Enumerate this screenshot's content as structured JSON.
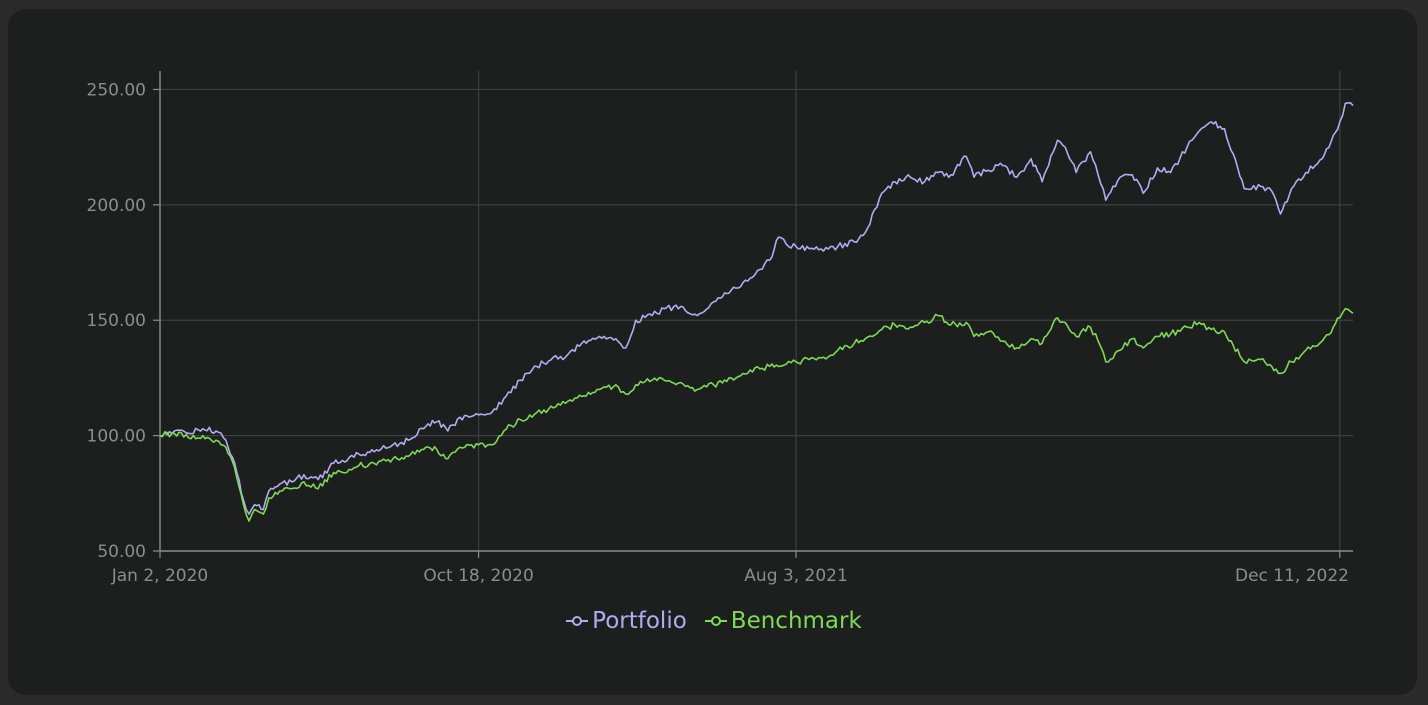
{
  "chart_data": {
    "type": "line",
    "x_type": "date",
    "x_range": [
      "2020-01-02",
      "2022-12-23"
    ],
    "x_ticks": [
      {
        "label": "Jan 2, 2020",
        "date": "2020-01-02"
      },
      {
        "label": "Oct 18, 2020",
        "date": "2020-10-18"
      },
      {
        "label": "Aug 3, 2021",
        "date": "2021-08-03"
      },
      {
        "label": "Dec 11, 2022",
        "date": "2022-12-11"
      }
    ],
    "y_ticks": [
      {
        "label": "50.00",
        "value": 50
      },
      {
        "label": "100.00",
        "value": 100
      },
      {
        "label": "150.00",
        "value": 150
      },
      {
        "label": "200.00",
        "value": 200
      },
      {
        "label": "250.00",
        "value": 250
      }
    ],
    "ylim": [
      50,
      258
    ],
    "grid": true,
    "legend_position": "bottom-center",
    "background_color": "#1d1e1e",
    "grid_color": "#3d3f40",
    "axis_color": "#8b8d8e",
    "series": [
      {
        "name": "Portfolio",
        "color": "#b5aaf1",
        "points": [
          [
            "2020-01-02",
            100
          ],
          [
            "2020-01-15",
            102
          ],
          [
            "2020-01-28",
            101
          ],
          [
            "2020-02-10",
            103
          ],
          [
            "2020-02-22",
            102
          ],
          [
            "2020-03-02",
            98
          ],
          [
            "2020-03-10",
            88
          ],
          [
            "2020-03-18",
            72
          ],
          [
            "2020-03-23",
            66
          ],
          [
            "2020-03-28",
            70
          ],
          [
            "2020-04-05",
            68
          ],
          [
            "2020-04-10",
            76
          ],
          [
            "2020-04-20",
            79
          ],
          [
            "2020-05-01",
            80
          ],
          [
            "2020-05-12",
            83
          ],
          [
            "2020-05-25",
            81
          ],
          [
            "2020-06-08",
            88
          ],
          [
            "2020-06-20",
            89
          ],
          [
            "2020-07-01",
            92
          ],
          [
            "2020-07-15",
            93
          ],
          [
            "2020-08-01",
            96
          ],
          [
            "2020-08-15",
            98
          ],
          [
            "2020-08-31",
            104
          ],
          [
            "2020-09-10",
            106
          ],
          [
            "2020-09-20",
            102
          ],
          [
            "2020-10-01",
            108
          ],
          [
            "2020-10-18",
            109
          ],
          [
            "2020-10-30",
            110
          ],
          [
            "2020-11-10",
            116
          ],
          [
            "2020-11-25",
            124
          ],
          [
            "2020-12-10",
            130
          ],
          [
            "2020-12-25",
            134
          ],
          [
            "2021-01-05",
            134
          ],
          [
            "2021-01-20",
            140
          ],
          [
            "2021-02-05",
            143
          ],
          [
            "2021-02-20",
            142
          ],
          [
            "2021-03-01",
            138
          ],
          [
            "2021-03-10",
            150
          ],
          [
            "2021-03-25",
            152
          ],
          [
            "2021-04-05",
            155
          ],
          [
            "2021-04-20",
            156
          ],
          [
            "2021-05-05",
            152
          ],
          [
            "2021-05-20",
            158
          ],
          [
            "2021-06-05",
            163
          ],
          [
            "2021-06-20",
            167
          ],
          [
            "2021-07-01",
            172
          ],
          [
            "2021-07-10",
            176
          ],
          [
            "2021-07-18",
            186
          ],
          [
            "2021-07-25",
            183
          ],
          [
            "2021-08-03",
            182
          ],
          [
            "2021-08-15",
            181
          ],
          [
            "2021-08-28",
            180
          ],
          [
            "2021-09-10",
            182
          ],
          [
            "2021-09-25",
            184
          ],
          [
            "2021-10-05",
            188
          ],
          [
            "2021-10-20",
            205
          ],
          [
            "2021-11-01",
            210
          ],
          [
            "2021-11-15",
            212
          ],
          [
            "2021-11-28",
            210
          ],
          [
            "2021-12-10",
            214
          ],
          [
            "2021-12-22",
            213
          ],
          [
            "2022-01-05",
            221
          ],
          [
            "2022-01-12",
            212
          ],
          [
            "2022-01-25",
            215
          ],
          [
            "2022-02-05",
            218
          ],
          [
            "2022-02-20",
            212
          ],
          [
            "2022-03-05",
            220
          ],
          [
            "2022-03-15",
            210
          ],
          [
            "2022-03-29",
            228
          ],
          [
            "2022-04-05",
            225
          ],
          [
            "2022-04-15",
            214
          ],
          [
            "2022-04-28",
            223
          ],
          [
            "2022-05-05",
            213
          ],
          [
            "2022-05-12",
            202
          ],
          [
            "2022-05-25",
            212
          ],
          [
            "2022-06-05",
            213
          ],
          [
            "2022-06-15",
            205
          ],
          [
            "2022-06-28",
            216
          ],
          [
            "2022-07-10",
            214
          ],
          [
            "2022-07-25",
            225
          ],
          [
            "2022-08-05",
            232
          ],
          [
            "2022-08-16",
            236
          ],
          [
            "2022-08-28",
            233
          ],
          [
            "2022-09-05",
            222
          ],
          [
            "2022-09-15",
            207
          ],
          [
            "2022-09-30",
            208
          ],
          [
            "2022-10-10",
            206
          ],
          [
            "2022-10-18",
            196
          ],
          [
            "2022-10-28",
            207
          ],
          [
            "2022-11-10",
            214
          ],
          [
            "2022-11-25",
            220
          ],
          [
            "2022-12-05",
            230
          ],
          [
            "2022-12-11",
            236
          ],
          [
            "2022-12-16",
            244
          ],
          [
            "2022-12-23",
            243
          ]
        ]
      },
      {
        "name": "Benchmark",
        "color": "#7ed957",
        "points": [
          [
            "2020-01-02",
            100
          ],
          [
            "2020-01-15",
            101
          ],
          [
            "2020-01-28",
            99
          ],
          [
            "2020-02-10",
            100
          ],
          [
            "2020-02-22",
            98
          ],
          [
            "2020-03-02",
            95
          ],
          [
            "2020-03-10",
            86
          ],
          [
            "2020-03-18",
            70
          ],
          [
            "2020-03-23",
            63
          ],
          [
            "2020-03-28",
            68
          ],
          [
            "2020-04-05",
            66
          ],
          [
            "2020-04-10",
            73
          ],
          [
            "2020-04-20",
            76
          ],
          [
            "2020-05-01",
            77
          ],
          [
            "2020-05-12",
            80
          ],
          [
            "2020-05-25",
            77
          ],
          [
            "2020-06-08",
            84
          ],
          [
            "2020-06-20",
            84
          ],
          [
            "2020-07-01",
            87
          ],
          [
            "2020-07-15",
            88
          ],
          [
            "2020-08-01",
            90
          ],
          [
            "2020-08-15",
            91
          ],
          [
            "2020-08-31",
            95
          ],
          [
            "2020-09-10",
            94
          ],
          [
            "2020-09-20",
            90
          ],
          [
            "2020-10-01",
            95
          ],
          [
            "2020-10-18",
            96
          ],
          [
            "2020-10-30",
            96
          ],
          [
            "2020-11-10",
            102
          ],
          [
            "2020-11-25",
            107
          ],
          [
            "2020-12-10",
            110
          ],
          [
            "2020-12-25",
            112
          ],
          [
            "2021-01-05",
            114
          ],
          [
            "2021-01-20",
            117
          ],
          [
            "2021-02-05",
            120
          ],
          [
            "2021-02-20",
            122
          ],
          [
            "2021-03-01",
            118
          ],
          [
            "2021-03-10",
            122
          ],
          [
            "2021-03-25",
            124
          ],
          [
            "2021-04-05",
            124
          ],
          [
            "2021-04-20",
            123
          ],
          [
            "2021-05-05",
            120
          ],
          [
            "2021-05-20",
            122
          ],
          [
            "2021-06-05",
            125
          ],
          [
            "2021-06-20",
            127
          ],
          [
            "2021-07-01",
            129
          ],
          [
            "2021-07-10",
            130
          ],
          [
            "2021-07-18",
            130
          ],
          [
            "2021-07-25",
            131
          ],
          [
            "2021-08-03",
            132
          ],
          [
            "2021-08-15",
            133
          ],
          [
            "2021-08-28",
            134
          ],
          [
            "2021-09-10",
            137
          ],
          [
            "2021-09-25",
            140
          ],
          [
            "2021-10-05",
            142
          ],
          [
            "2021-10-20",
            146
          ],
          [
            "2021-11-01",
            148
          ],
          [
            "2021-11-15",
            147
          ],
          [
            "2021-11-28",
            149
          ],
          [
            "2021-12-10",
            152
          ],
          [
            "2021-12-22",
            148
          ],
          [
            "2022-01-05",
            149
          ],
          [
            "2022-01-12",
            143
          ],
          [
            "2022-01-25",
            145
          ],
          [
            "2022-02-05",
            141
          ],
          [
            "2022-02-20",
            138
          ],
          [
            "2022-03-05",
            142
          ],
          [
            "2022-03-15",
            140
          ],
          [
            "2022-03-29",
            151
          ],
          [
            "2022-04-05",
            149
          ],
          [
            "2022-04-15",
            143
          ],
          [
            "2022-04-28",
            147
          ],
          [
            "2022-05-05",
            141
          ],
          [
            "2022-05-12",
            132
          ],
          [
            "2022-05-25",
            137
          ],
          [
            "2022-06-05",
            142
          ],
          [
            "2022-06-15",
            138
          ],
          [
            "2022-06-28",
            143
          ],
          [
            "2022-07-10",
            144
          ],
          [
            "2022-07-25",
            147
          ],
          [
            "2022-08-05",
            149
          ],
          [
            "2022-08-16",
            146
          ],
          [
            "2022-08-28",
            145
          ],
          [
            "2022-09-05",
            139
          ],
          [
            "2022-09-15",
            132
          ],
          [
            "2022-09-30",
            133
          ],
          [
            "2022-10-10",
            130
          ],
          [
            "2022-10-18",
            127
          ],
          [
            "2022-10-28",
            132
          ],
          [
            "2022-11-10",
            137
          ],
          [
            "2022-11-25",
            141
          ],
          [
            "2022-12-05",
            147
          ],
          [
            "2022-12-11",
            151
          ],
          [
            "2022-12-16",
            155
          ],
          [
            "2022-12-23",
            153
          ]
        ]
      }
    ]
  }
}
